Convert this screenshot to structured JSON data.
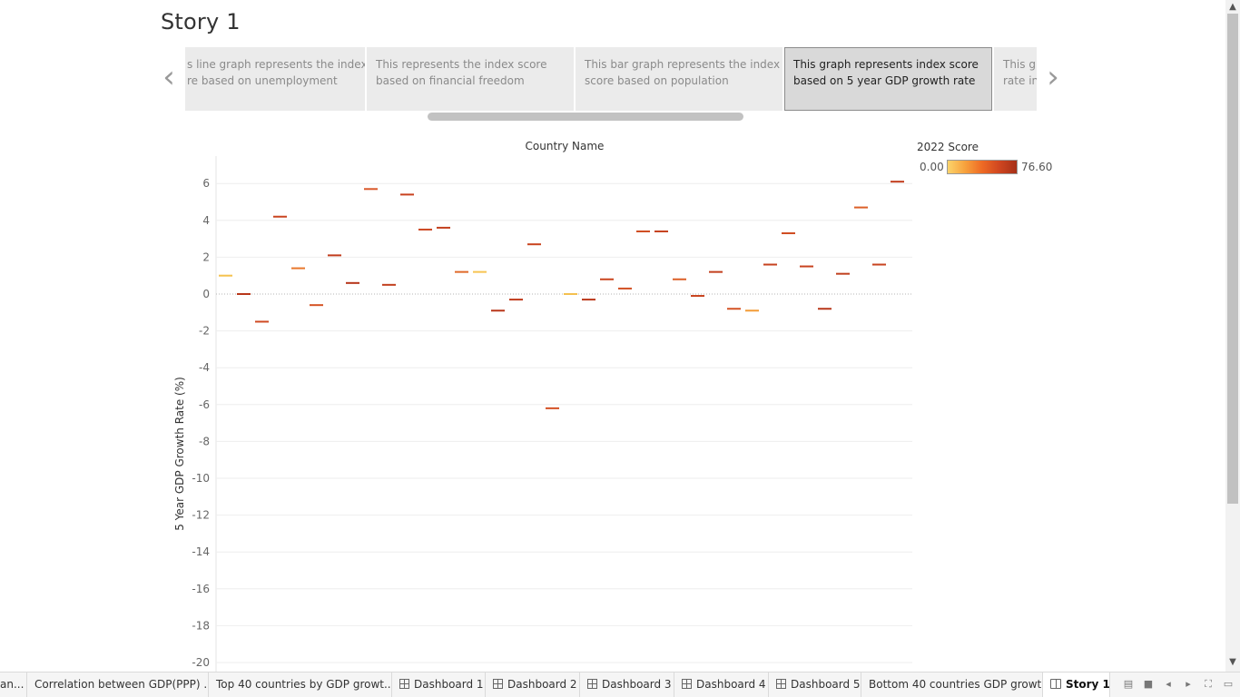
{
  "story": {
    "title": "Story 1"
  },
  "story_points": [
    {
      "line1": "s line graph represents the index",
      "line2": "re based on unemployment",
      "active": false
    },
    {
      "line1": "This represents the index score",
      "line2": "based on financial freedom",
      "active": false
    },
    {
      "line1": "This bar graph represents the index",
      "line2": "score based on population",
      "active": false
    },
    {
      "line1": "This graph represents index score",
      "line2": "based on 5 year GDP growth rate",
      "active": true
    },
    {
      "line1": "This gr",
      "line2": "rate in",
      "active": false
    }
  ],
  "legend": {
    "title": "2022 Score",
    "min_label": "0.00",
    "max_label": "76.60"
  },
  "chart_data": {
    "type": "scatter",
    "title": "Country Name",
    "xlabel": "",
    "ylabel": "5 Year GDP Growth Rate (%)",
    "ylim": [
      -20,
      7
    ],
    "yticks": [
      6,
      4,
      2,
      0,
      -2,
      -4,
      -6,
      -8,
      -10,
      -12,
      -14,
      -16,
      -18,
      -20
    ],
    "grid": true,
    "series": [
      {
        "values": [
          1.0,
          0.0,
          -1.5,
          4.2,
          1.4,
          -0.6,
          2.1,
          0.6,
          5.7,
          0.5,
          5.4,
          3.5,
          3.6,
          1.2,
          1.2,
          -0.9,
          -0.3,
          2.7,
          -6.2,
          0.0,
          -0.3,
          0.8,
          0.3,
          3.4,
          3.4,
          0.8,
          -0.1,
          1.2,
          -0.8,
          -0.9,
          1.6,
          3.3,
          1.5,
          -0.8,
          1.1,
          4.7,
          1.6,
          6.1
        ],
        "colors": [
          "#f5c24e",
          "#b8371a",
          "#cf4a22",
          "#c9441f",
          "#e8772c",
          "#d55324",
          "#c23d1d",
          "#b63519",
          "#d9582a",
          "#c2401e",
          "#c8421f",
          "#cd4822",
          "#c3401e",
          "#e06a2a",
          "#f6c453",
          "#b83619",
          "#c03b1d",
          "#c9441f",
          "#d45023",
          "#f4c050",
          "#bb391b",
          "#c9451f",
          "#d25023",
          "#d04d22",
          "#c6421f",
          "#dc5f28",
          "#c9441f",
          "#c3401e",
          "#d45325",
          "#f39b37",
          "#c6421f",
          "#d04d22",
          "#c8431f",
          "#b8371a",
          "#c0401e",
          "#dc5f28",
          "#c8431f",
          "#c23d1d"
        ]
      }
    ]
  },
  "tabs": [
    {
      "label": "an...",
      "icon": ""
    },
    {
      "label": "Correlation between GDP(PPP) ...",
      "icon": ""
    },
    {
      "label": "Top 40 countries by GDP growt...",
      "icon": ""
    },
    {
      "label": "Dashboard 1",
      "icon": "grid"
    },
    {
      "label": "Dashboard 2",
      "icon": "grid"
    },
    {
      "label": "Dashboard 3",
      "icon": "grid"
    },
    {
      "label": "Dashboard 4",
      "icon": "grid"
    },
    {
      "label": "Dashboard 5",
      "icon": "grid"
    },
    {
      "label": "Bottom 40 countries GDP growt...",
      "icon": ""
    },
    {
      "label": "Story 1",
      "icon": "book",
      "active": true
    }
  ],
  "status_icons": [
    "thumbnail-view-icon",
    "sheet-view-icon",
    "previous-sheet-icon",
    "next-sheet-icon",
    "fullscreen-icon",
    "present-icon"
  ]
}
